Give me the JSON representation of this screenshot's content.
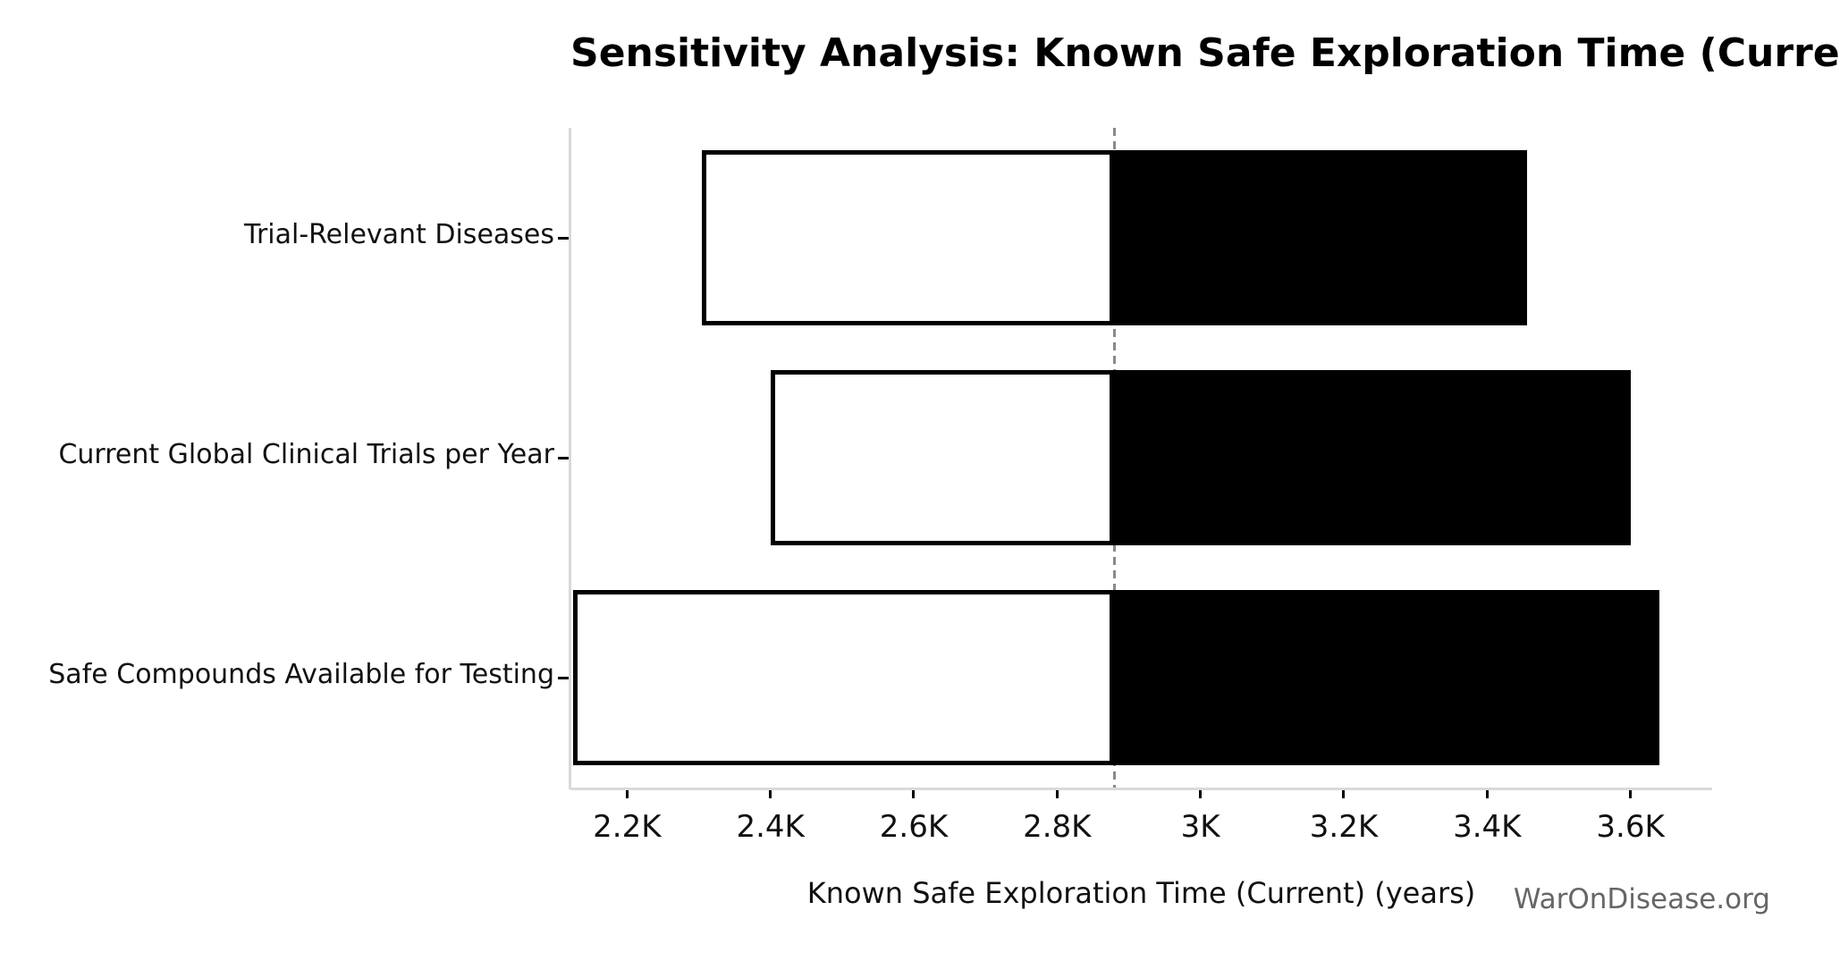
{
  "watermark": "WarOnDisease.org",
  "chart_data": {
    "type": "bar",
    "subtype": "tornado-sensitivity",
    "orientation": "horizontal",
    "title": "Sensitivity Analysis: Known Safe Exploration Time (Current)",
    "xlabel": "Known Safe Exploration Time (Current) (years)",
    "baseline": 2880,
    "categories": [
      "Trial-Relevant Diseases",
      "Current Global Clinical Trials per Year",
      "Safe Compounds Available for Testing"
    ],
    "bars": [
      {
        "category": "Trial-Relevant Diseases",
        "low": 2304,
        "high": 3456
      },
      {
        "category": "Current Global Clinical Trials per Year",
        "low": 2400,
        "high": 3600
      },
      {
        "category": "Safe Compounds Available for Testing",
        "low": 2125,
        "high": 3640
      }
    ],
    "xlim": [
      2121,
      3714
    ],
    "xticks": [
      2200,
      2400,
      2600,
      2800,
      3000,
      3200,
      3400,
      3600
    ],
    "xtick_labels": [
      "2.2K",
      "2.4K",
      "2.6K",
      "2.8K",
      "3K",
      "3.2K",
      "3.4K",
      "3.6K"
    ],
    "grid": false,
    "legend": false,
    "colors": {
      "increase_fill": "#000000",
      "decrease_fill": "#ffffff",
      "bar_edge": "#000000",
      "baseline_line": "#8a8a8a",
      "spine": "#d9d9d9",
      "tick": "#000000",
      "text": "#111111",
      "watermark": "#666666"
    }
  }
}
